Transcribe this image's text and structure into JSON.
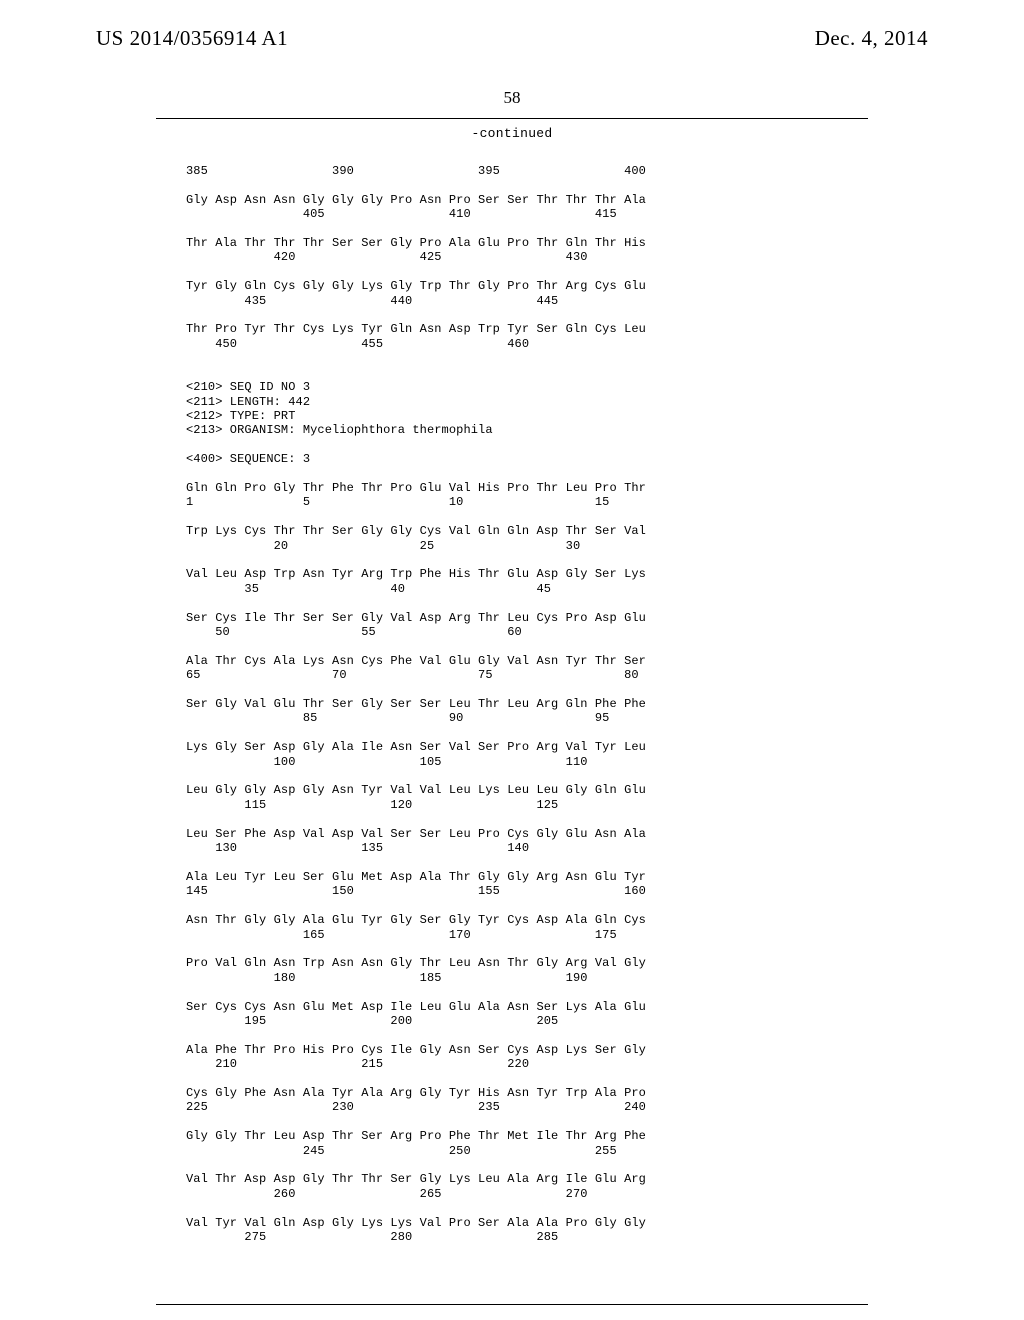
{
  "header": {
    "left": "US 2014/0356914 A1",
    "right": "Dec. 4, 2014"
  },
  "page_number": "58",
  "continued_label": "-continued",
  "sequence_text": "385                 390                 395                 400\n\nGly Asp Asn Asn Gly Gly Gly Pro Asn Pro Ser Ser Thr Thr Thr Ala\n                405                 410                 415\n\nThr Ala Thr Thr Thr Ser Ser Gly Pro Ala Glu Pro Thr Gln Thr His\n            420                 425                 430\n\nTyr Gly Gln Cys Gly Gly Lys Gly Trp Thr Gly Pro Thr Arg Cys Glu\n        435                 440                 445\n\nThr Pro Tyr Thr Cys Lys Tyr Gln Asn Asp Trp Tyr Ser Gln Cys Leu\n    450                 455                 460\n\n\n<210> SEQ ID NO 3\n<211> LENGTH: 442\n<212> TYPE: PRT\n<213> ORGANISM: Myceliophthora thermophila\n\n<400> SEQUENCE: 3\n\nGln Gln Pro Gly Thr Phe Thr Pro Glu Val His Pro Thr Leu Pro Thr\n1               5                   10                  15\n\nTrp Lys Cys Thr Thr Ser Gly Gly Cys Val Gln Gln Asp Thr Ser Val\n            20                  25                  30\n\nVal Leu Asp Trp Asn Tyr Arg Trp Phe His Thr Glu Asp Gly Ser Lys\n        35                  40                  45\n\nSer Cys Ile Thr Ser Ser Gly Val Asp Arg Thr Leu Cys Pro Asp Glu\n    50                  55                  60\n\nAla Thr Cys Ala Lys Asn Cys Phe Val Glu Gly Val Asn Tyr Thr Ser\n65                  70                  75                  80\n\nSer Gly Val Glu Thr Ser Gly Ser Ser Leu Thr Leu Arg Gln Phe Phe\n                85                  90                  95\n\nLys Gly Ser Asp Gly Ala Ile Asn Ser Val Ser Pro Arg Val Tyr Leu\n            100                 105                 110\n\nLeu Gly Gly Asp Gly Asn Tyr Val Val Leu Lys Leu Leu Gly Gln Glu\n        115                 120                 125\n\nLeu Ser Phe Asp Val Asp Val Ser Ser Leu Pro Cys Gly Glu Asn Ala\n    130                 135                 140\n\nAla Leu Tyr Leu Ser Glu Met Asp Ala Thr Gly Gly Arg Asn Glu Tyr\n145                 150                 155                 160\n\nAsn Thr Gly Gly Ala Glu Tyr Gly Ser Gly Tyr Cys Asp Ala Gln Cys\n                165                 170                 175\n\nPro Val Gln Asn Trp Asn Asn Gly Thr Leu Asn Thr Gly Arg Val Gly\n            180                 185                 190\n\nSer Cys Cys Asn Glu Met Asp Ile Leu Glu Ala Asn Ser Lys Ala Glu\n        195                 200                 205\n\nAla Phe Thr Pro His Pro Cys Ile Gly Asn Ser Cys Asp Lys Ser Gly\n    210                 215                 220\n\nCys Gly Phe Asn Ala Tyr Ala Arg Gly Tyr His Asn Tyr Trp Ala Pro\n225                 230                 235                 240\n\nGly Gly Thr Leu Asp Thr Ser Arg Pro Phe Thr Met Ile Thr Arg Phe\n                245                 250                 255\n\nVal Thr Asp Asp Gly Thr Thr Ser Gly Lys Leu Ala Arg Ile Glu Arg\n            260                 265                 270\n\nVal Tyr Val Gln Asp Gly Lys Lys Val Pro Ser Ala Ala Pro Gly Gly\n        275                 280                 285"
}
